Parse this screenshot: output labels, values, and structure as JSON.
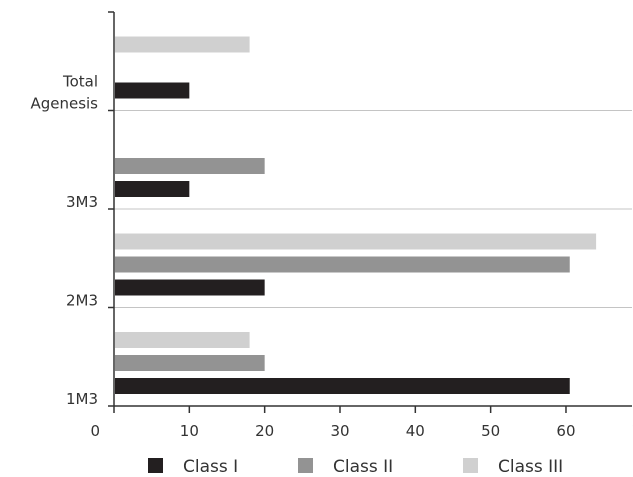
{
  "chart_data": {
    "type": "bar",
    "orientation": "horizontal",
    "categories": [
      "1M3",
      "2M3",
      "3M3",
      "Total Agenesis"
    ],
    "category_label_lines": [
      [
        "1M3"
      ],
      [
        "2M3"
      ],
      [
        "3M3"
      ],
      [
        "Total",
        "Agenesis"
      ]
    ],
    "series": [
      {
        "name": "Class I",
        "color": "#231f20",
        "values": [
          60.5,
          20,
          10,
          10
        ]
      },
      {
        "name": "Class II",
        "color": "#939393",
        "values": [
          20,
          60.5,
          20,
          null
        ]
      },
      {
        "name": "Class III",
        "color": "#d0d0d0",
        "values": [
          18,
          64,
          null,
          18
        ]
      }
    ],
    "x_ticks": [
      "0",
      "10",
      "20",
      "30",
      "40",
      "50",
      "60",
      "70"
    ],
    "xlim": [
      0,
      70
    ],
    "xlabel": "",
    "ylabel": "",
    "title": "",
    "grid": "horizontal lines at category boundaries",
    "legend_position": "bottom"
  }
}
